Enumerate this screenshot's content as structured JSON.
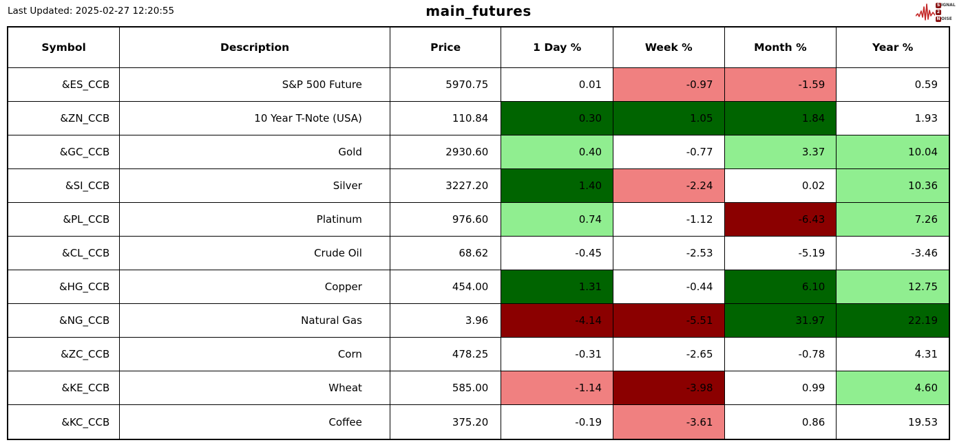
{
  "header": {
    "last_updated": "Last Updated: 2025-02-27 12:20:55",
    "title": "main_futures",
    "logo": {
      "line1_box": "S",
      "line1_rest": "IGNAL",
      "line2_box": "2",
      "line2_rest": "",
      "line3_box": "N",
      "line3_rest": "OISE",
      "wave_color": "#c42727",
      "box_color": "#8a1515"
    }
  },
  "colors": {
    "pos_strong": "#006400",
    "pos_mild": "#90ee90",
    "neg_strong": "#8b0000",
    "neg_mild": "#f08080",
    "neutral": "#ffffff"
  },
  "table": {
    "columns": [
      "Symbol",
      "Description",
      "Price",
      "1 Day %",
      "Week %",
      "Month %",
      "Year %"
    ],
    "rows": [
      {
        "symbol": "&ES_CCB",
        "description": "S&P 500 Future",
        "price": "5970.75",
        "changes": [
          {
            "value": "0.01",
            "tone": "neutral"
          },
          {
            "value": "-0.97",
            "tone": "neg_mild"
          },
          {
            "value": "-1.59",
            "tone": "neg_mild"
          },
          {
            "value": "0.59",
            "tone": "neutral"
          }
        ]
      },
      {
        "symbol": "&ZN_CCB",
        "description": "10 Year T-Note (USA)",
        "price": "110.84",
        "changes": [
          {
            "value": "0.30",
            "tone": "pos_strong"
          },
          {
            "value": "1.05",
            "tone": "pos_strong"
          },
          {
            "value": "1.84",
            "tone": "pos_strong"
          },
          {
            "value": "1.93",
            "tone": "neutral"
          }
        ]
      },
      {
        "symbol": "&GC_CCB",
        "description": "Gold",
        "price": "2930.60",
        "changes": [
          {
            "value": "0.40",
            "tone": "pos_mild"
          },
          {
            "value": "-0.77",
            "tone": "neutral"
          },
          {
            "value": "3.37",
            "tone": "pos_mild"
          },
          {
            "value": "10.04",
            "tone": "pos_mild"
          }
        ]
      },
      {
        "symbol": "&SI_CCB",
        "description": "Silver",
        "price": "3227.20",
        "changes": [
          {
            "value": "1.40",
            "tone": "pos_strong"
          },
          {
            "value": "-2.24",
            "tone": "neg_mild"
          },
          {
            "value": "0.02",
            "tone": "neutral"
          },
          {
            "value": "10.36",
            "tone": "pos_mild"
          }
        ]
      },
      {
        "symbol": "&PL_CCB",
        "description": "Platinum",
        "price": "976.60",
        "changes": [
          {
            "value": "0.74",
            "tone": "pos_mild"
          },
          {
            "value": "-1.12",
            "tone": "neutral"
          },
          {
            "value": "-6.43",
            "tone": "neg_strong"
          },
          {
            "value": "7.26",
            "tone": "pos_mild"
          }
        ]
      },
      {
        "symbol": "&CL_CCB",
        "description": "Crude Oil",
        "price": "68.62",
        "changes": [
          {
            "value": "-0.45",
            "tone": "neutral"
          },
          {
            "value": "-2.53",
            "tone": "neutral"
          },
          {
            "value": "-5.19",
            "tone": "neutral"
          },
          {
            "value": "-3.46",
            "tone": "neutral"
          }
        ]
      },
      {
        "symbol": "&HG_CCB",
        "description": "Copper",
        "price": "454.00",
        "changes": [
          {
            "value": "1.31",
            "tone": "pos_strong"
          },
          {
            "value": "-0.44",
            "tone": "neutral"
          },
          {
            "value": "6.10",
            "tone": "pos_strong"
          },
          {
            "value": "12.75",
            "tone": "pos_mild"
          }
        ]
      },
      {
        "symbol": "&NG_CCB",
        "description": "Natural Gas",
        "price": "3.96",
        "changes": [
          {
            "value": "-4.14",
            "tone": "neg_strong"
          },
          {
            "value": "-5.51",
            "tone": "neg_strong"
          },
          {
            "value": "31.97",
            "tone": "pos_strong"
          },
          {
            "value": "22.19",
            "tone": "pos_strong"
          }
        ]
      },
      {
        "symbol": "&ZC_CCB",
        "description": "Corn",
        "price": "478.25",
        "changes": [
          {
            "value": "-0.31",
            "tone": "neutral"
          },
          {
            "value": "-2.65",
            "tone": "neutral"
          },
          {
            "value": "-0.78",
            "tone": "neutral"
          },
          {
            "value": "4.31",
            "tone": "neutral"
          }
        ]
      },
      {
        "symbol": "&KE_CCB",
        "description": "Wheat",
        "price": "585.00",
        "changes": [
          {
            "value": "-1.14",
            "tone": "neg_mild"
          },
          {
            "value": "-3.98",
            "tone": "neg_strong"
          },
          {
            "value": "0.99",
            "tone": "neutral"
          },
          {
            "value": "4.60",
            "tone": "pos_mild"
          }
        ]
      },
      {
        "symbol": "&KC_CCB",
        "description": "Coffee",
        "price": "375.20",
        "changes": [
          {
            "value": "-0.19",
            "tone": "neutral"
          },
          {
            "value": "-3.61",
            "tone": "neg_mild"
          },
          {
            "value": "0.86",
            "tone": "neutral"
          },
          {
            "value": "19.53",
            "tone": "neutral"
          }
        ]
      }
    ]
  },
  "chart_data": {
    "type": "table",
    "title": "main_futures",
    "columns": [
      "Symbol",
      "Description",
      "Price",
      "1 Day %",
      "Week %",
      "Month %",
      "Year %"
    ],
    "rows": [
      [
        "&ES_CCB",
        "S&P 500 Future",
        5970.75,
        0.01,
        -0.97,
        -1.59,
        0.59
      ],
      [
        "&ZN_CCB",
        "10 Year T-Note (USA)",
        110.84,
        0.3,
        1.05,
        1.84,
        1.93
      ],
      [
        "&GC_CCB",
        "Gold",
        2930.6,
        0.4,
        -0.77,
        3.37,
        10.04
      ],
      [
        "&SI_CCB",
        "Silver",
        3227.2,
        1.4,
        -2.24,
        0.02,
        10.36
      ],
      [
        "&PL_CCB",
        "Platinum",
        976.6,
        0.74,
        -1.12,
        -6.43,
        7.26
      ],
      [
        "&CL_CCB",
        "Crude Oil",
        68.62,
        -0.45,
        -2.53,
        -5.19,
        -3.46
      ],
      [
        "&HG_CCB",
        "Copper",
        454.0,
        1.31,
        -0.44,
        6.1,
        12.75
      ],
      [
        "&NG_CCB",
        "Natural Gas",
        3.96,
        -4.14,
        -5.51,
        31.97,
        22.19
      ],
      [
        "&ZC_CCB",
        "Corn",
        478.25,
        -0.31,
        -2.65,
        -0.78,
        4.31
      ],
      [
        "&KE_CCB",
        "Wheat",
        585.0,
        -1.14,
        -3.98,
        0.99,
        4.6
      ],
      [
        "&KC_CCB",
        "Coffee",
        375.2,
        -0.19,
        -3.61,
        0.86,
        19.53
      ]
    ],
    "cell_color_legend": {
      "dark_green": "strong positive move",
      "light_green": "mild positive move",
      "white": "neutral move",
      "light_red": "mild negative move",
      "dark_red": "strong negative move"
    }
  }
}
